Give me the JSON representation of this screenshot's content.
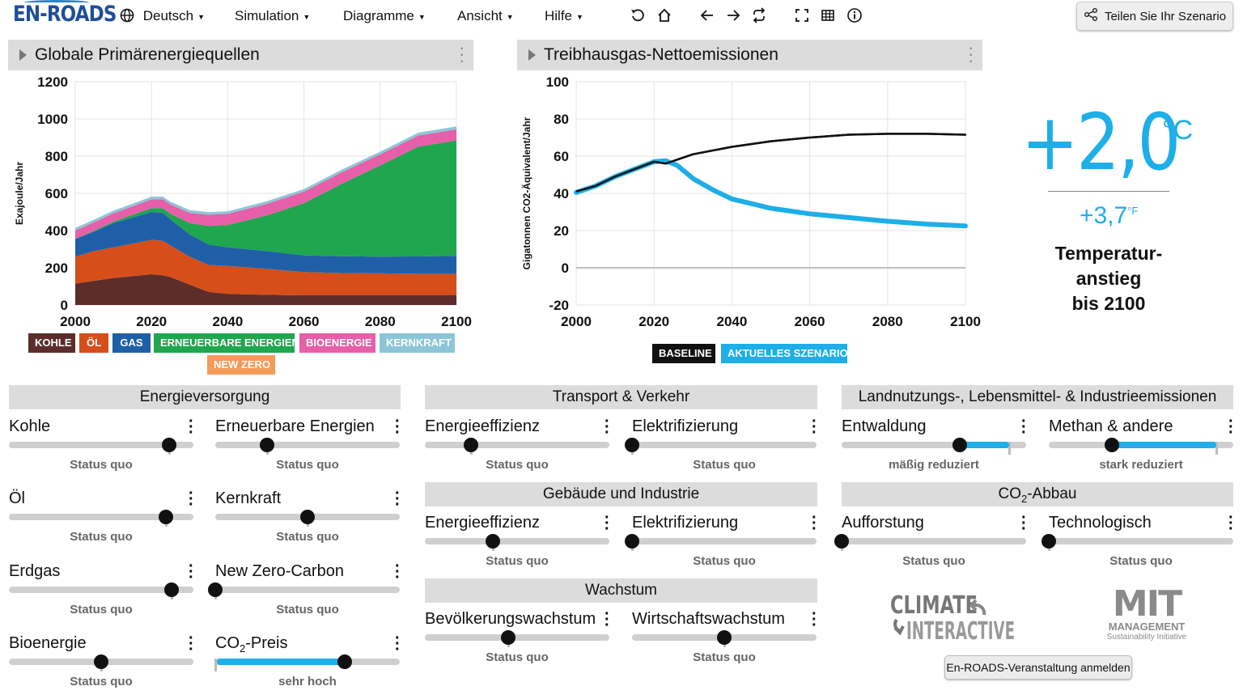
{
  "app": {
    "logo": "EN-ROADS"
  },
  "menu": {
    "language": "Deutsch",
    "simulation": "Simulation",
    "charts": "Diagramme",
    "view": "Ansicht",
    "help": "Hilfe"
  },
  "toolbar": {
    "icons": [
      "undo-icon",
      "home-icon",
      "arrow-left-icon",
      "arrow-right-icon",
      "swap-icon",
      "fullscreen-icon",
      "table-icon",
      "info-icon"
    ],
    "share_label": "Teilen Sie Ihr Szenario"
  },
  "left_panel": {
    "title": "Globale Primärenergiequellen"
  },
  "right_panel": {
    "title": "Treibhausgas-Nettoemissionen"
  },
  "temperature": {
    "celsius": "+2,0",
    "celsius_unit": "°C",
    "fahrenheit": "+3,7",
    "fahrenheit_unit": "°F",
    "label_line1": "Temperatur-",
    "label_line2": "anstieg",
    "label_line3": "bis 2100"
  },
  "chart_data": [
    {
      "type": "area",
      "stacked": true,
      "title": "Globale Primärenergiequellen",
      "ylabel": "Exajoule/Jahr",
      "xlabel": "",
      "xlim": [
        2000,
        2100
      ],
      "ylim": [
        0,
        1200
      ],
      "x_ticks": [
        2000,
        2020,
        2040,
        2060,
        2080,
        2100
      ],
      "y_ticks": [
        0,
        200,
        400,
        600,
        800,
        1000,
        1200
      ],
      "x": [
        2000,
        2005,
        2010,
        2015,
        2020,
        2023,
        2025,
        2030,
        2035,
        2040,
        2050,
        2060,
        2070,
        2080,
        2090,
        2100
      ],
      "series": [
        {
          "name": "KOHLE",
          "color": "#5c2d2b",
          "values": [
            115,
            130,
            145,
            155,
            165,
            160,
            150,
            110,
            70,
            60,
            55,
            52,
            52,
            52,
            52,
            52
          ]
        },
        {
          "name": "ÖL",
          "color": "#d64e1a",
          "values": [
            145,
            160,
            165,
            175,
            185,
            185,
            170,
            150,
            145,
            150,
            140,
            125,
            120,
            118,
            116,
            116
          ]
        },
        {
          "name": "GAS",
          "color": "#1f5fa8",
          "values": [
            95,
            105,
            130,
            140,
            150,
            150,
            140,
            120,
            110,
            100,
            95,
            90,
            90,
            90,
            93,
            96
          ]
        },
        {
          "name": "ERNEUERBARE ENERGIEN",
          "color": "#1fa64f",
          "values": [
            0,
            5,
            8,
            15,
            20,
            25,
            30,
            60,
            100,
            120,
            190,
            280,
            390,
            490,
            590,
            620
          ]
        },
        {
          "name": "BIOENERGIE",
          "color": "#e65fa8",
          "values": [
            45,
            45,
            45,
            45,
            48,
            48,
            50,
            55,
            60,
            60,
            62,
            62,
            62,
            60,
            60,
            60
          ]
        },
        {
          "name": "KERNKRAFT",
          "color": "#8cc6d6",
          "values": [
            14,
            14,
            14,
            14,
            14,
            14,
            15,
            15,
            14,
            14,
            14,
            14,
            14,
            14,
            15,
            16
          ]
        },
        {
          "name": "NEW ZERO",
          "color": "#f39b5a",
          "values": [
            0,
            0,
            0,
            0,
            0,
            0,
            0,
            0,
            0,
            0,
            0,
            0,
            0,
            0,
            0,
            0
          ]
        }
      ]
    },
    {
      "type": "line",
      "title": "Treibhausgas-Nettoemissionen",
      "ylabel": "Gigatonnen CO2-Äquivalent/Jahr",
      "xlabel": "",
      "xlim": [
        2000,
        2100
      ],
      "ylim": [
        -20,
        100
      ],
      "x_ticks": [
        2000,
        2020,
        2040,
        2060,
        2080,
        2100
      ],
      "y_ticks": [
        -20,
        0,
        20,
        40,
        60,
        80,
        100
      ],
      "series": [
        {
          "name": "BASELINE",
          "color": "#111111",
          "x": [
            2000,
            2005,
            2010,
            2015,
            2020,
            2023,
            2030,
            2040,
            2050,
            2060,
            2070,
            2080,
            2090,
            2100
          ],
          "values": [
            41,
            44,
            49,
            53,
            57,
            56,
            61,
            65,
            68,
            70,
            71.5,
            72,
            72,
            71.5
          ]
        },
        {
          "name": "AKTUELLES SZENARIO",
          "color": "#1eaee8",
          "x": [
            2000,
            2005,
            2010,
            2015,
            2020,
            2023,
            2026,
            2030,
            2035,
            2040,
            2050,
            2060,
            2070,
            2080,
            2090,
            2100
          ],
          "values": [
            40.5,
            44,
            49,
            53,
            57,
            57.5,
            55,
            48,
            42,
            37,
            32,
            29,
            27,
            25,
            23.5,
            22.5
          ]
        }
      ]
    }
  ],
  "sections": {
    "energy": "Energieversorgung",
    "transport": "Transport & Verkehr",
    "buildings": "Gebäude und Industrie",
    "growth": "Wachstum",
    "land": "Landnutzungs-, Lebensmittel- & Industrieemissionen",
    "co2_removal_prefix": "CO",
    "co2_removal_sub": "2",
    "co2_removal_suffix": "-Abbau"
  },
  "sliders": {
    "coal": {
      "label": "Kohle",
      "status": "Status quo",
      "value": 0.87
    },
    "renewables": {
      "label": "Erneuerbare Energien",
      "status": "Status quo",
      "value": 0.28
    },
    "oil": {
      "label": "Öl",
      "status": "Status quo",
      "value": 0.85
    },
    "nuclear": {
      "label": "Kernkraft",
      "status": "Status quo",
      "value": 0.5
    },
    "gas": {
      "label": "Erdgas",
      "status": "Status quo",
      "value": 0.88
    },
    "newzero": {
      "label": "New Zero-Carbon",
      "status": "Status quo",
      "value": 0.0
    },
    "bio": {
      "label": "Bioenergie",
      "status": "Status quo",
      "value": 0.5
    },
    "co2price": {
      "label_prefix": "CO",
      "label_sub": "2",
      "label_suffix": "-Preis",
      "status": "sehr hoch",
      "value": 0.7
    },
    "trans_eff": {
      "label": "Energieeffizienz",
      "status": "Status quo",
      "value": 0.25
    },
    "trans_elec": {
      "label": "Elektrifizierung",
      "status": "Status quo",
      "value": 0.0
    },
    "build_eff": {
      "label": "Energieeffizienz",
      "status": "Status quo",
      "value": 0.37
    },
    "build_elec": {
      "label": "Elektrifizierung",
      "status": "Status quo",
      "value": 0.0
    },
    "pop": {
      "label": "Bevölkerungswachstum",
      "status": "Status quo",
      "value": 0.45
    },
    "econ": {
      "label": "Wirtschaftswachstum",
      "status": "Status quo",
      "value": 0.5
    },
    "deforest": {
      "label": "Entwaldung",
      "status": "mäßig reduziert",
      "value": 0.64
    },
    "methane": {
      "label": "Methan & andere",
      "status": "stark reduziert",
      "value": 0.34
    },
    "afforest": {
      "label": "Aufforstung",
      "status": "Status quo",
      "value": 0.0
    },
    "tech": {
      "label": "Technologisch",
      "status": "Status quo",
      "value": 0.0
    }
  },
  "footer": {
    "ci_line1": "CLIMATE",
    "ci_line2": "INTERACTIVE",
    "mit_line1": "MIT",
    "mit_line2": "MANAGEMENT",
    "mit_line3": "Sustainability Initiative",
    "register": "En-ROADS-Veranstaltung anmelden"
  }
}
